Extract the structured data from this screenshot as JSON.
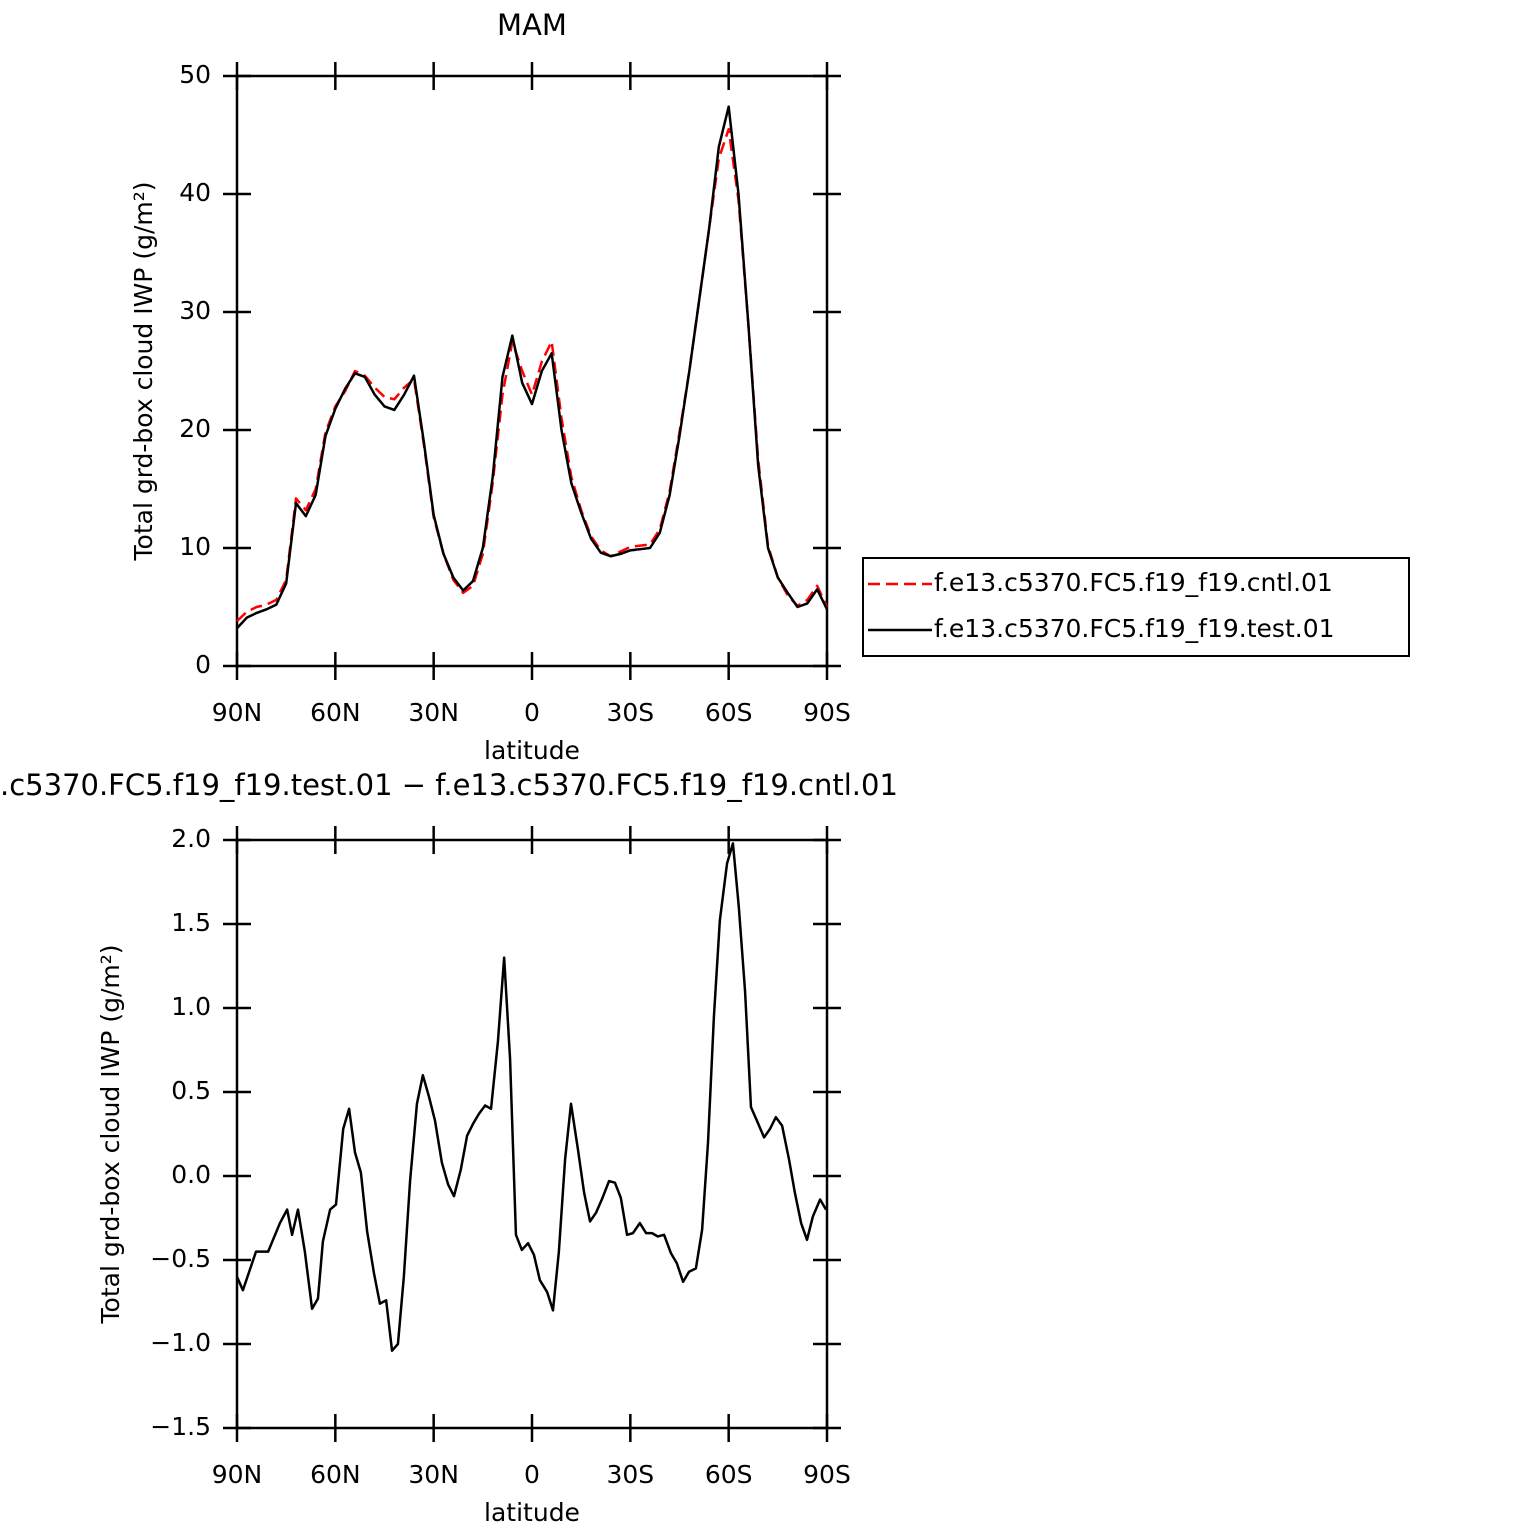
{
  "chart_data": [
    {
      "type": "line",
      "title": "MAM",
      "ylabel": "Total grd-box cloud IWP (g/m²)",
      "xlabel": "latitude",
      "xlim": [
        90,
        -90
      ],
      "ylim": [
        0,
        50
      ],
      "xticks": [
        {
          "value": 90,
          "label": "90N"
        },
        {
          "value": 60,
          "label": "60N"
        },
        {
          "value": 30,
          "label": "30N"
        },
        0,
        {
          "value": -30,
          "label": "30S"
        },
        {
          "value": -60,
          "label": "60S"
        },
        {
          "value": -90,
          "label": "90S"
        }
      ],
      "yticks": [
        0,
        10,
        20,
        30,
        40,
        50
      ],
      "legend": "right",
      "x": [
        90,
        87,
        84,
        81,
        78,
        75,
        72,
        69,
        66,
        63,
        60,
        57,
        54,
        51,
        48,
        45,
        42,
        39,
        36,
        33,
        30,
        27,
        24,
        21,
        18,
        15,
        12,
        9,
        6,
        3,
        0,
        -3,
        -6,
        -9,
        -12,
        -15,
        -18,
        -21,
        -24,
        -27,
        -30,
        -33,
        -36,
        -39,
        -42,
        -45,
        -48,
        -51,
        -54,
        -57,
        -60,
        -63,
        -66,
        -69,
        -72,
        -75,
        -78,
        -81,
        -84,
        -87,
        -90
      ],
      "series": [
        {
          "name": "f.e13.c5370.FC5.f19_f19.cntl.01",
          "color": "#ff0000",
          "dashed": true,
          "values": [
            3.8,
            4.6,
            5.0,
            5.2,
            5.6,
            7.3,
            14.2,
            13.2,
            15.0,
            19.8,
            22.0,
            23.3,
            25.0,
            24.6,
            23.6,
            22.8,
            22.6,
            23.6,
            24.3,
            18.8,
            12.6,
            9.5,
            7.3,
            6.2,
            6.8,
            9.5,
            15.5,
            23.0,
            27.5,
            25.0,
            23.0,
            25.8,
            27.5,
            21.0,
            16.0,
            13.2,
            11.0,
            9.8,
            9.3,
            9.7,
            10.1,
            10.2,
            10.3,
            11.6,
            14.8,
            19.8,
            25.0,
            31.0,
            37.0,
            43.0,
            45.5,
            39.5,
            29.0,
            17.5,
            10.2,
            7.5,
            6.0,
            5.1,
            5.6,
            6.8,
            5.0
          ]
        },
        {
          "name": "f.e13.c5370.FC5.f19_f19.test.01",
          "color": "#000000",
          "dashed": false,
          "values": [
            3.2,
            4.1,
            4.5,
            4.8,
            5.2,
            7.0,
            13.8,
            12.7,
            14.5,
            19.5,
            21.8,
            23.5,
            24.8,
            24.5,
            23.0,
            22.0,
            21.7,
            23.0,
            24.6,
            19.0,
            12.8,
            9.5,
            7.5,
            6.4,
            7.2,
            10.0,
            16.0,
            24.5,
            28.0,
            24.0,
            22.2,
            25.0,
            26.5,
            20.0,
            15.5,
            13.0,
            10.8,
            9.6,
            9.3,
            9.5,
            9.8,
            9.9,
            10.0,
            11.3,
            14.5,
            19.5,
            25.0,
            31.0,
            37.0,
            44.0,
            47.4,
            40.0,
            29.0,
            17.0,
            10.0,
            7.5,
            6.2,
            5.0,
            5.3,
            6.5,
            4.8
          ]
        }
      ]
    },
    {
      "type": "line",
      "title": ".c5370.FC5.f19_f19.test.01 − f.e13.c5370.FC5.f19_f19.cntl.01",
      "ylabel": "Total grd-box cloud IWP (g/m²)",
      "xlabel": "latitude",
      "xlim": [
        90,
        -90
      ],
      "ylim": [
        -1.5,
        2
      ],
      "xticks": [
        {
          "value": 90,
          "label": "90N"
        },
        {
          "value": 60,
          "label": "60N"
        },
        {
          "value": 30,
          "label": "30N"
        },
        0,
        {
          "value": -30,
          "label": "30S"
        },
        {
          "value": -60,
          "label": "60S"
        },
        {
          "value": -90,
          "label": "90S"
        }
      ],
      "yticks": [
        {
          "value": -1.5,
          "label": "−1.5"
        },
        {
          "value": -1,
          "label": "−1.0"
        },
        {
          "value": -0.5,
          "label": "−0.5"
        },
        {
          "value": 0,
          "label": "0.0"
        },
        0.5,
        {
          "value": 1,
          "label": "1.0"
        },
        1.5,
        {
          "value": 2,
          "label": "2.0"
        }
      ],
      "x": [
        90,
        88.2,
        84.2,
        80.5,
        76.9,
        74.7,
        73.2,
        71.4,
        69.3,
        67.1,
        65.3,
        63.8,
        61.6,
        59.8,
        57.6,
        55.8,
        54.0,
        52.2,
        50.3,
        48.2,
        46.4,
        44.5,
        42.7,
        40.9,
        39.1,
        37.2,
        35.1,
        33.3,
        31.4,
        29.6,
        27.5,
        25.6,
        23.8,
        21.7,
        19.8,
        18.0,
        16.2,
        14.3,
        12.5,
        10.4,
        8.5,
        6.7,
        4.9,
        3.1,
        1.2,
        -0.6,
        -2.4,
        -4.6,
        -6.4,
        -8.2,
        -10.1,
        -11.9,
        -14.0,
        -15.9,
        -17.7,
        -19.5,
        -21.3,
        -23.5,
        -25.3,
        -27.1,
        -29.0,
        -30.8,
        -32.9,
        -34.8,
        -36.6,
        -38.4,
        -40.3,
        -42.4,
        -44.2,
        -46.1,
        -47.9,
        -50.0,
        -51.9,
        -53.7,
        -55.5,
        -57.3,
        -59.5,
        -61.3,
        -63.1,
        -65.0,
        -66.8,
        -68.6,
        -70.8,
        -72.6,
        -74.4,
        -76.3,
        -78.4,
        -80.2,
        -82.1,
        -83.9,
        -85.7,
        -87.9,
        -89.7
      ],
      "series": [
        {
          "color": "#000000",
          "dashed": false,
          "values": [
            -0.6,
            -0.68,
            -0.45,
            -0.45,
            -0.28,
            -0.2,
            -0.35,
            -0.2,
            -0.45,
            -0.79,
            -0.73,
            -0.39,
            -0.2,
            -0.17,
            0.28,
            0.4,
            0.14,
            0.02,
            -0.33,
            -0.58,
            -0.76,
            -0.74,
            -1.04,
            -1.0,
            -0.6,
            -0.03,
            0.43,
            0.6,
            0.47,
            0.33,
            0.08,
            -0.05,
            -0.12,
            0.04,
            0.24,
            0.31,
            0.37,
            0.42,
            0.4,
            0.8,
            1.3,
            0.7,
            -0.35,
            -0.44,
            -0.4,
            -0.47,
            -0.62,
            -0.69,
            -0.8,
            -0.45,
            0.1,
            0.43,
            0.16,
            -0.1,
            -0.27,
            -0.22,
            -0.14,
            -0.03,
            -0.04,
            -0.13,
            -0.35,
            -0.34,
            -0.28,
            -0.34,
            -0.34,
            -0.36,
            -0.35,
            -0.46,
            -0.52,
            -0.63,
            -0.57,
            -0.55,
            -0.32,
            0.2,
            0.95,
            1.52,
            1.86,
            1.98,
            1.6,
            1.1,
            0.41,
            0.33,
            0.23,
            0.28,
            0.35,
            0.3,
            0.1,
            -0.1,
            -0.28,
            -0.38,
            -0.24,
            -0.14,
            -0.2
          ]
        }
      ]
    }
  ]
}
